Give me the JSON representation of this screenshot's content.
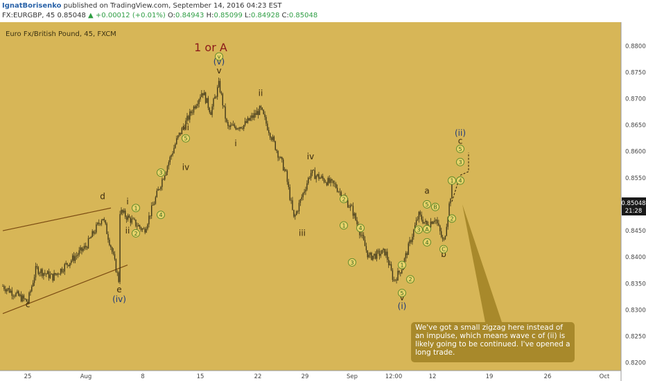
{
  "header": {
    "author": "IgnatBorisenko",
    "published_text": "published on TradingView.com, September 14, 2016 04:23 EST",
    "symbol": "FX:EURGBP, 45",
    "last": "0.85048",
    "arrow": "▲",
    "change": "+0.00012 (+0.01%)",
    "open_label": "O:",
    "open": "0.84943",
    "high_label": "H:",
    "high": "0.85099",
    "low_label": "L:",
    "low": "0.84928",
    "close_label": "C:",
    "close": "0.85048"
  },
  "chart_title": "Euro Fx/British Pound, 45, FXCM",
  "price_tag": {
    "value": "0.85048",
    "countdown": "21:28"
  },
  "note": "We've got a small zigzag here instead of an impulse, which means wave c of (ii) is likely going to be continued. I've opened a long trade.",
  "colors": {
    "background": "#d7b657",
    "axis_bg": "#ffffff",
    "candle": "#3d3519",
    "channel": "#7a4a12",
    "wave_label": "#3b2a0e",
    "degree_label": "#1f3a7a",
    "big_label": "#8b1a1a",
    "circle_fill": "#e9d36b",
    "circle_stroke": "#5b8a2a",
    "circle_text": "#3c6b1f",
    "note_bg": "#a8892b",
    "price_tag_bg": "#1a1a1a"
  },
  "chart_data": {
    "type": "candlestick",
    "y_ticks": [
      "0.88000",
      "0.87500",
      "0.87000",
      "0.86500",
      "0.86000",
      "0.85500",
      "0.85000",
      "0.84500",
      "0.84000",
      "0.83500",
      "0.83000",
      "0.82500",
      "0.82000"
    ],
    "ylim": [
      0.8185,
      0.8845
    ],
    "x_ticks": [
      "25",
      "Aug",
      "8",
      "15",
      "22",
      "29",
      "Sep",
      "12:00",
      "12",
      "19",
      "26",
      "Oct"
    ],
    "grid": false,
    "path": [
      {
        "x": "Jul 22",
        "y": 0.8345
      },
      {
        "x": "Jul 25",
        "y": 0.8315
      },
      {
        "x": "Jul 26",
        "y": 0.8378
      },
      {
        "x": "Jul 28",
        "y": 0.8362
      },
      {
        "x": "Aug 1",
        "y": 0.842
      },
      {
        "x": "Aug 3",
        "y": 0.8477
      },
      {
        "x": "Aug 4",
        "y": 0.842
      },
      {
        "x": "Aug 5",
        "y": 0.8352
      },
      {
        "x": "Aug 5",
        "y": 0.8488
      },
      {
        "x": "Aug 8",
        "y": 0.845
      },
      {
        "x": "Aug 10",
        "y": 0.854
      },
      {
        "x": "Aug 12",
        "y": 0.8625
      },
      {
        "x": "Aug 15",
        "y": 0.8715
      },
      {
        "x": "Aug 16",
        "y": 0.8675
      },
      {
        "x": "Aug 17",
        "y": 0.8728
      },
      {
        "x": "Aug 18",
        "y": 0.8645
      },
      {
        "x": "Aug 20",
        "y": 0.865
      },
      {
        "x": "Aug 22",
        "y": 0.868
      },
      {
        "x": "Aug 25",
        "y": 0.856
      },
      {
        "x": "Aug 26",
        "y": 0.8472
      },
      {
        "x": "Aug 28",
        "y": 0.856
      },
      {
        "x": "Aug 31",
        "y": 0.8535
      },
      {
        "x": "Sep 2",
        "y": 0.849
      },
      {
        "x": "Sep 4",
        "y": 0.84
      },
      {
        "x": "Sep 6",
        "y": 0.841
      },
      {
        "x": "Sep 7",
        "y": 0.8355
      },
      {
        "x": "Sep 8",
        "y": 0.838
      },
      {
        "x": "Sep 9",
        "y": 0.843
      },
      {
        "x": "Sep 10",
        "y": 0.848
      },
      {
        "x": "Sep 11",
        "y": 0.846
      },
      {
        "x": "Sep 12",
        "y": 0.8475
      },
      {
        "x": "Sep 13",
        "y": 0.8425
      },
      {
        "x": "Sep 14",
        "y": 0.8535
      },
      {
        "x": "Sep 14",
        "y": 0.8505
      }
    ],
    "wave_labels": [
      {
        "text": "c",
        "x": "Jul 25",
        "y": 0.8305
      },
      {
        "text": "d",
        "x": "Aug 3",
        "y": 0.851
      },
      {
        "text": "i",
        "x": "Aug 6",
        "y": 0.85
      },
      {
        "text": "ii",
        "x": "Aug 6",
        "y": 0.8445
      },
      {
        "text": "e",
        "x": "Aug 5",
        "y": 0.8333
      },
      {
        "text": "iii",
        "x": "Aug 13",
        "y": 0.864
      },
      {
        "text": "iv",
        "x": "Aug 13",
        "y": 0.8565
      },
      {
        "text": "v",
        "x": "Aug 17",
        "y": 0.8748
      },
      {
        "text": "i",
        "x": "Aug 19",
        "y": 0.861
      },
      {
        "text": "ii",
        "x": "Aug 22",
        "y": 0.8705
      },
      {
        "text": "iii",
        "x": "Aug 27",
        "y": 0.844
      },
      {
        "text": "iv",
        "x": "Aug 28",
        "y": 0.8585
      },
      {
        "text": "v",
        "x": "Sep 8",
        "y": 0.8318
      },
      {
        "text": "a",
        "x": "Sep 11",
        "y": 0.852
      },
      {
        "text": "b",
        "x": "Sep 13",
        "y": 0.84
      },
      {
        "text": "c",
        "x": "Sep 15",
        "y": 0.8615
      }
    ],
    "degree_labels": [
      {
        "text": "(iv)",
        "x": "Aug 5",
        "y": 0.8315
      },
      {
        "text": "(v)",
        "x": "Aug 17",
        "y": 0.8765
      },
      {
        "text": "(i)",
        "x": "Sep 8",
        "y": 0.8302
      },
      {
        "text": "(ii)",
        "x": "Sep 15",
        "y": 0.863
      }
    ],
    "big_labels": [
      {
        "text": "1 or A",
        "x": "Aug 16",
        "y": 0.879
      }
    ],
    "circle_labels": [
      {
        "text": "v",
        "x": "Aug 17",
        "y": 0.878
      },
      {
        "text": "1",
        "x": "Aug 7",
        "y": 0.8493
      },
      {
        "text": "2",
        "x": "Aug 7",
        "y": 0.8445
      },
      {
        "text": "3",
        "x": "Aug 10",
        "y": 0.856
      },
      {
        "text": "4",
        "x": "Aug 10",
        "y": 0.848
      },
      {
        "text": "5",
        "x": "Aug 13",
        "y": 0.8625
      },
      {
        "text": "2",
        "x": "Sep 1",
        "y": 0.851
      },
      {
        "text": "1",
        "x": "Sep 1",
        "y": 0.846
      },
      {
        "text": "4",
        "x": "Sep 3",
        "y": 0.8455
      },
      {
        "text": "3",
        "x": "Sep 2",
        "y": 0.839
      },
      {
        "text": "1",
        "x": "Sep 8",
        "y": 0.8385
      },
      {
        "text": "2",
        "x": "Sep 9",
        "y": 0.8358
      },
      {
        "text": "5",
        "x": "Sep 8",
        "y": 0.8332
      },
      {
        "text": "3",
        "x": "Sep 10",
        "y": 0.8452
      },
      {
        "text": "4",
        "x": "Sep 11",
        "y": 0.8428
      },
      {
        "text": "5",
        "x": "Sep 11",
        "y": 0.85
      },
      {
        "text": "A",
        "x": "Sep 11",
        "y": 0.8453
      },
      {
        "text": "B",
        "x": "Sep 12",
        "y": 0.8495
      },
      {
        "text": "C",
        "x": "Sep 13",
        "y": 0.8415
      },
      {
        "text": "1",
        "x": "Sep 14",
        "y": 0.8545
      },
      {
        "text": "2",
        "x": "Sep 14",
        "y": 0.8473
      },
      {
        "text": "3",
        "x": "Sep 15",
        "y": 0.858
      },
      {
        "text": "4",
        "x": "Sep 15",
        "y": 0.8545
      },
      {
        "text": "5",
        "x": "Sep 15",
        "y": 0.8605
      }
    ],
    "channel_lines": [
      {
        "from": {
          "x": "Jul 22",
          "y": 0.845
        },
        "to": {
          "x": "Aug 4",
          "y": 0.8493
        }
      },
      {
        "from": {
          "x": "Jul 22",
          "y": 0.8293
        },
        "to": {
          "x": "Aug 6",
          "y": 0.8385
        }
      }
    ],
    "projection": [
      {
        "x": "Sep 14",
        "y": 0.8505
      },
      {
        "x": "Sep 15",
        "y": 0.8555
      },
      {
        "x": "Sep 16",
        "y": 0.8562
      },
      {
        "x": "Sep 16",
        "y": 0.8598
      }
    ]
  }
}
